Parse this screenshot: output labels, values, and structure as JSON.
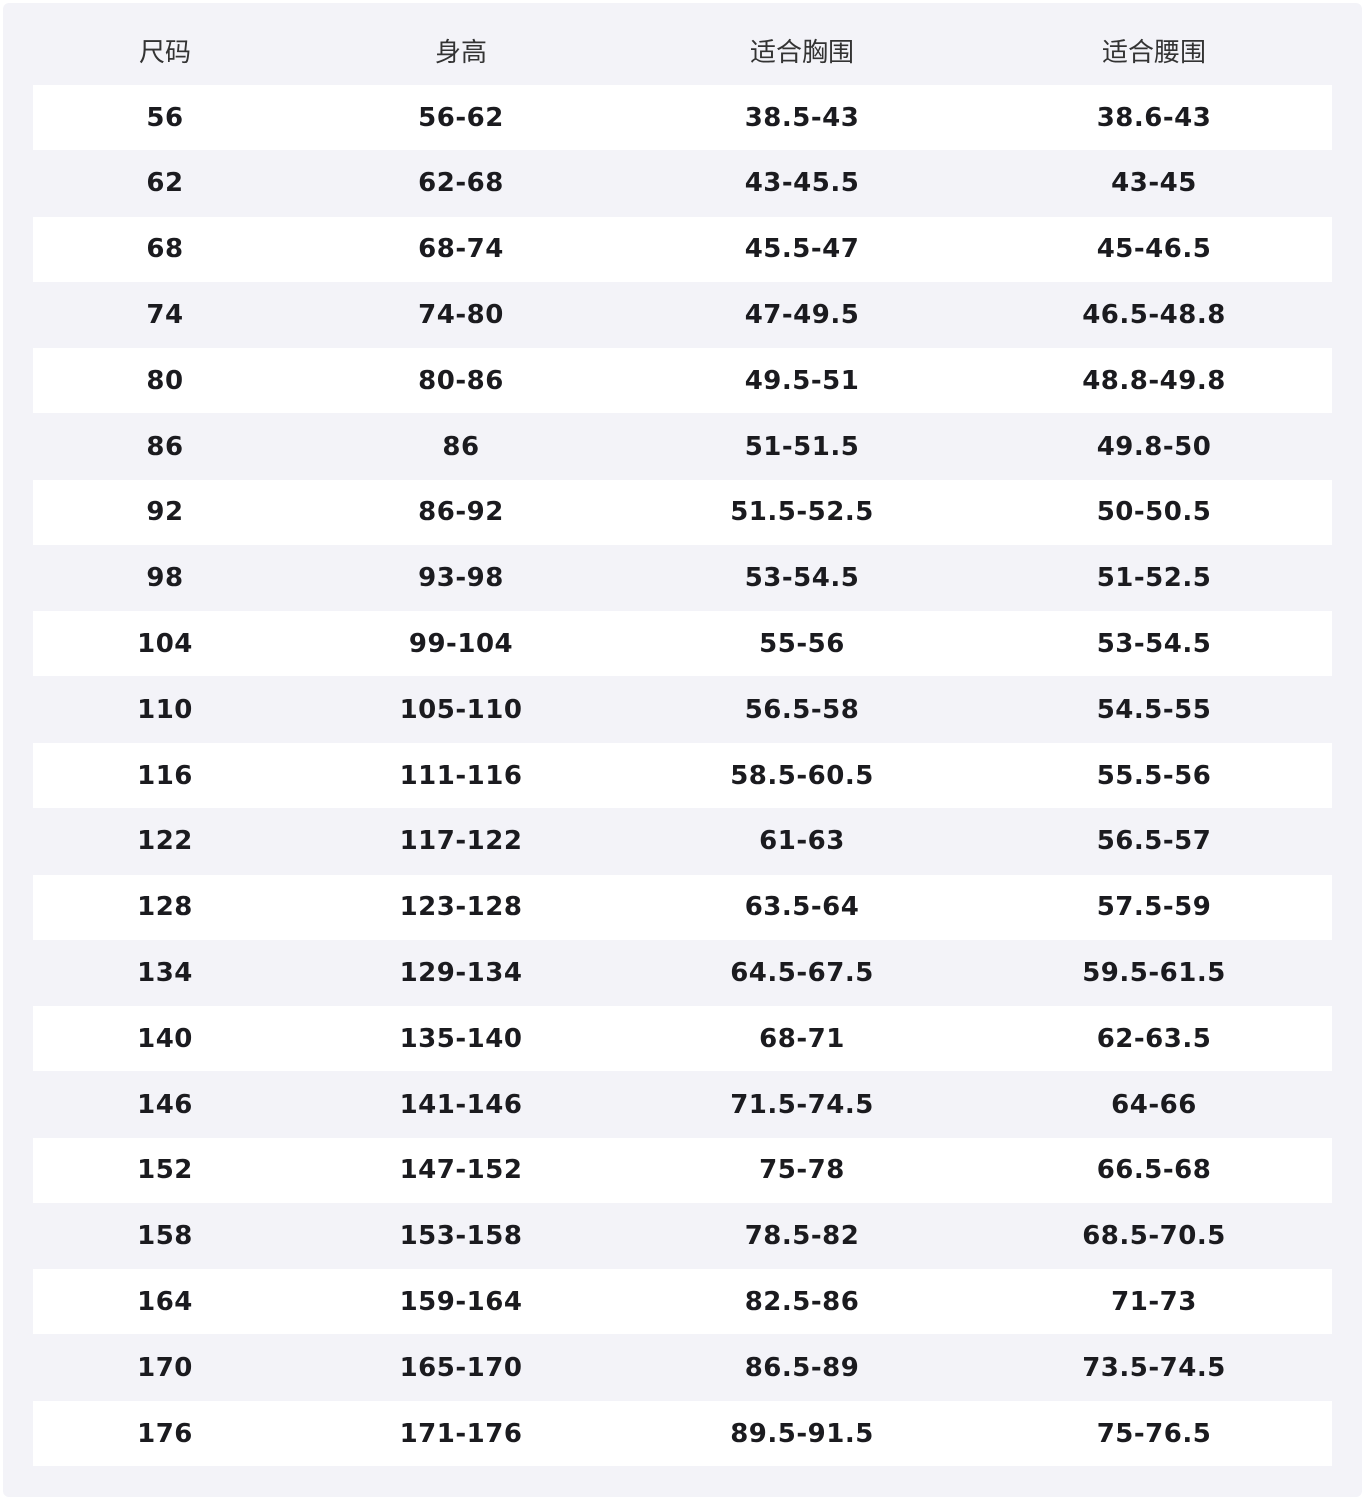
{
  "table": {
    "headers": [
      "尺码",
      "身高",
      "适合胸围",
      "适合腰围"
    ],
    "rows": [
      [
        "56",
        "56-62",
        "38.5-43",
        "38.6-43"
      ],
      [
        "62",
        "62-68",
        "43-45.5",
        "43-45"
      ],
      [
        "68",
        "68-74",
        "45.5-47",
        "45-46.5"
      ],
      [
        "74",
        "74-80",
        "47-49.5",
        "46.5-48.8"
      ],
      [
        "80",
        "80-86",
        "49.5-51",
        "48.8-49.8"
      ],
      [
        "86",
        "86",
        "51-51.5",
        "49.8-50"
      ],
      [
        "92",
        "86-92",
        "51.5-52.5",
        "50-50.5"
      ],
      [
        "98",
        "93-98",
        "53-54.5",
        "51-52.5"
      ],
      [
        "104",
        "99-104",
        "55-56",
        "53-54.5"
      ],
      [
        "110",
        "105-110",
        "56.5-58",
        "54.5-55"
      ],
      [
        "116",
        "111-116",
        "58.5-60.5",
        "55.5-56"
      ],
      [
        "122",
        "117-122",
        "61-63",
        "56.5-57"
      ],
      [
        "128",
        "123-128",
        "63.5-64",
        "57.5-59"
      ],
      [
        "134",
        "129-134",
        "64.5-67.5",
        "59.5-61.5"
      ],
      [
        "140",
        "135-140",
        "68-71",
        "62-63.5"
      ],
      [
        "146",
        "141-146",
        "71.5-74.5",
        "64-66"
      ],
      [
        "152",
        "147-152",
        "75-78",
        "66.5-68"
      ],
      [
        "158",
        "153-158",
        "78.5-82",
        "68.5-70.5"
      ],
      [
        "164",
        "159-164",
        "82.5-86",
        "71-73"
      ],
      [
        "170",
        "165-170",
        "86.5-89",
        "73.5-74.5"
      ],
      [
        "176",
        "171-176",
        "89.5-91.5",
        "75-76.5"
      ]
    ]
  }
}
